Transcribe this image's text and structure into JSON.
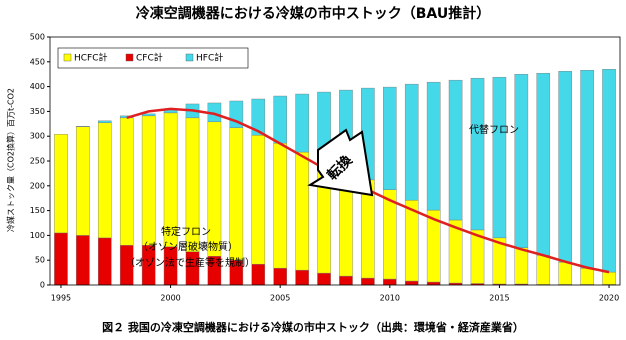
{
  "chart_data": {
    "type": "bar",
    "title": "冷凍空調機器における冷媒の市中ストック（BAU推計）",
    "y_label": "冷媒ストック量（CO2換算）百万t-CO2",
    "caption": "図２ 我国の冷凍空調機器における冷媒の市中ストック（出典：環境省・経済産業省）",
    "stacked": true,
    "x": [
      1995,
      1996,
      1997,
      1998,
      1999,
      2000,
      2001,
      2002,
      2003,
      2004,
      2005,
      2006,
      2007,
      2008,
      2009,
      2010,
      2011,
      2012,
      2013,
      2014,
      2015,
      2016,
      2017,
      2018,
      2019,
      2020
    ],
    "xlim": [
      1994.5,
      2020.5
    ],
    "xticks": [
      1995,
      2000,
      2005,
      2010,
      2015,
      2020
    ],
    "ylim": [
      0,
      500
    ],
    "yticks": [
      0,
      50,
      100,
      150,
      200,
      250,
      300,
      350,
      400,
      450,
      500
    ],
    "series": [
      {
        "name": "CFC計",
        "color": "#e60000",
        "values": [
          105,
          100,
          95,
          80,
          80,
          77,
          67,
          58,
          50,
          42,
          34,
          30,
          24,
          18,
          14,
          12,
          8,
          6,
          4,
          3,
          2,
          2,
          1,
          1,
          1,
          1
        ]
      },
      {
        "name": "HCFC計",
        "color": "#ffff00",
        "values": [
          199,
          219,
          232,
          257,
          261,
          270,
          270,
          271,
          267,
          260,
          252,
          238,
          224,
          214,
          198,
          180,
          163,
          145,
          127,
          108,
          93,
          73,
          59,
          45,
          33,
          25
        ]
      },
      {
        "name": "HFC計",
        "color": "#44d8e8",
        "values": [
          0,
          1,
          4,
          4,
          4,
          6,
          28,
          38,
          54,
          73,
          95,
          117,
          141,
          161,
          185,
          207,
          234,
          258,
          282,
          306,
          324,
          350,
          367,
          385,
          399,
          409
        ]
      }
    ],
    "trend_line": {
      "color": "#e02020",
      "values": [
        null,
        null,
        null,
        337,
        350,
        355,
        352,
        345,
        330,
        310,
        285,
        260,
        235,
        213,
        192,
        171,
        152,
        133,
        116,
        100,
        85,
        72,
        60,
        47,
        35,
        26
      ]
    },
    "annotations": [
      "特定フロン",
      "（オゾン層破壊物質）",
      "（オゾン法で生産等を規制）",
      "代替フロン",
      "転換"
    ]
  }
}
